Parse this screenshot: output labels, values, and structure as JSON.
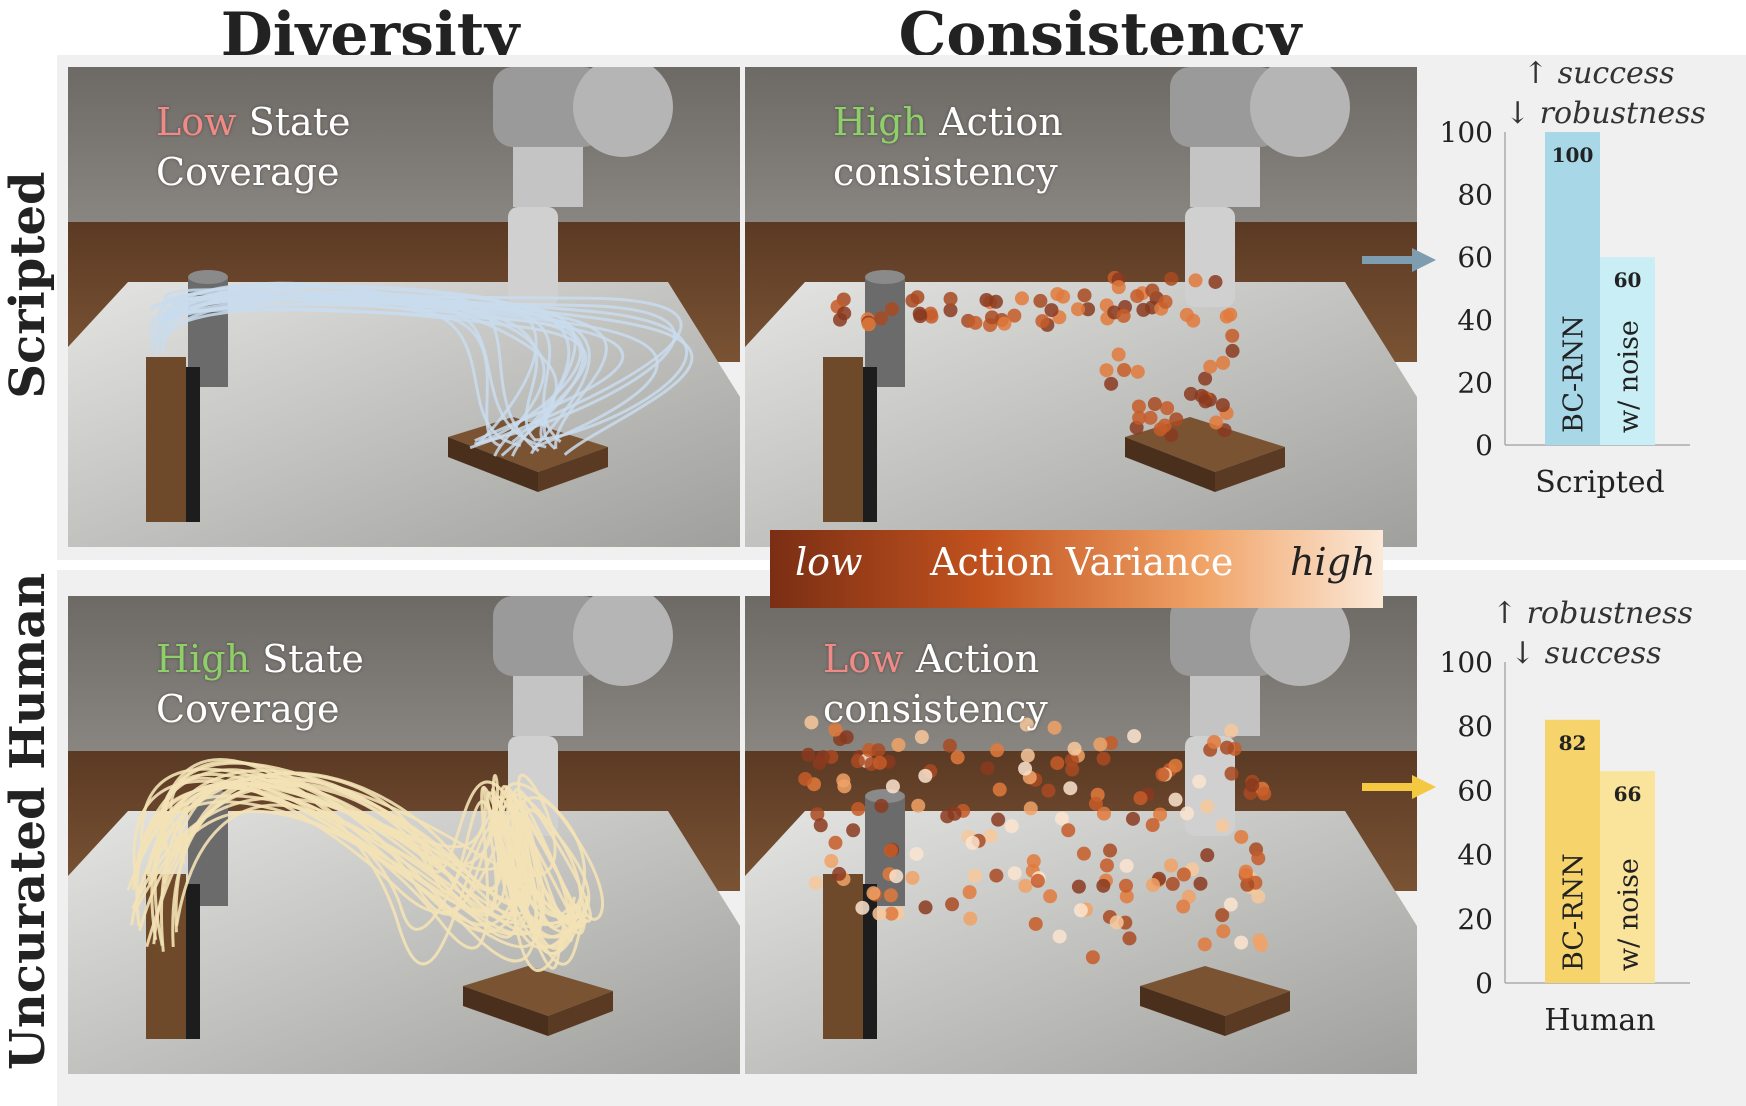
{
  "columns": {
    "diversity": "Diversity",
    "consistency": "Consistency"
  },
  "rows": {
    "scripted": "Scripted",
    "human": "Uncurated Human"
  },
  "panels": {
    "scripted_diversity": {
      "qual": "Low",
      "rest": "State",
      "line2": "Coverage"
    },
    "scripted_consistency": {
      "qual": "High",
      "rest": "Action",
      "line2": "consistency"
    },
    "human_diversity": {
      "qual": "High",
      "rest": "State",
      "line2": "Coverage"
    },
    "human_consistency": {
      "qual": "Low",
      "rest": "Action",
      "line2": "consistency"
    }
  },
  "legend": {
    "low": "low",
    "title": "Action Variance",
    "high": "high"
  },
  "notes": {
    "scripted": {
      "line1": "↑ success",
      "line2": "↓ robustness"
    },
    "human": {
      "line1": "↑ robustness",
      "line2": "↓ success"
    }
  },
  "colors": {
    "scripted_traj": "#c9dced",
    "human_traj": "#f3e2b6",
    "scripted_bar1": "#a8d8e8",
    "scripted_bar2": "#c9eef6",
    "human_bar1": "#f7d46b",
    "human_bar2": "#fae39a",
    "scripted_arrow": "#7f9db0",
    "human_arrow": "#f5c842"
  },
  "chart_data": [
    {
      "type": "bar",
      "xlabel": "Scripted",
      "categories": [
        "BC-RNN",
        "w/ noise"
      ],
      "values": [
        100,
        60
      ],
      "ylim": [
        0,
        100
      ],
      "yticks": [
        0,
        20,
        40,
        60,
        80,
        100
      ]
    },
    {
      "type": "bar",
      "xlabel": "Human",
      "categories": [
        "BC-RNN",
        "w/ noise"
      ],
      "values": [
        82,
        66
      ],
      "ylim": [
        0,
        100
      ],
      "yticks": [
        0,
        20,
        40,
        60,
        80,
        100
      ]
    }
  ]
}
